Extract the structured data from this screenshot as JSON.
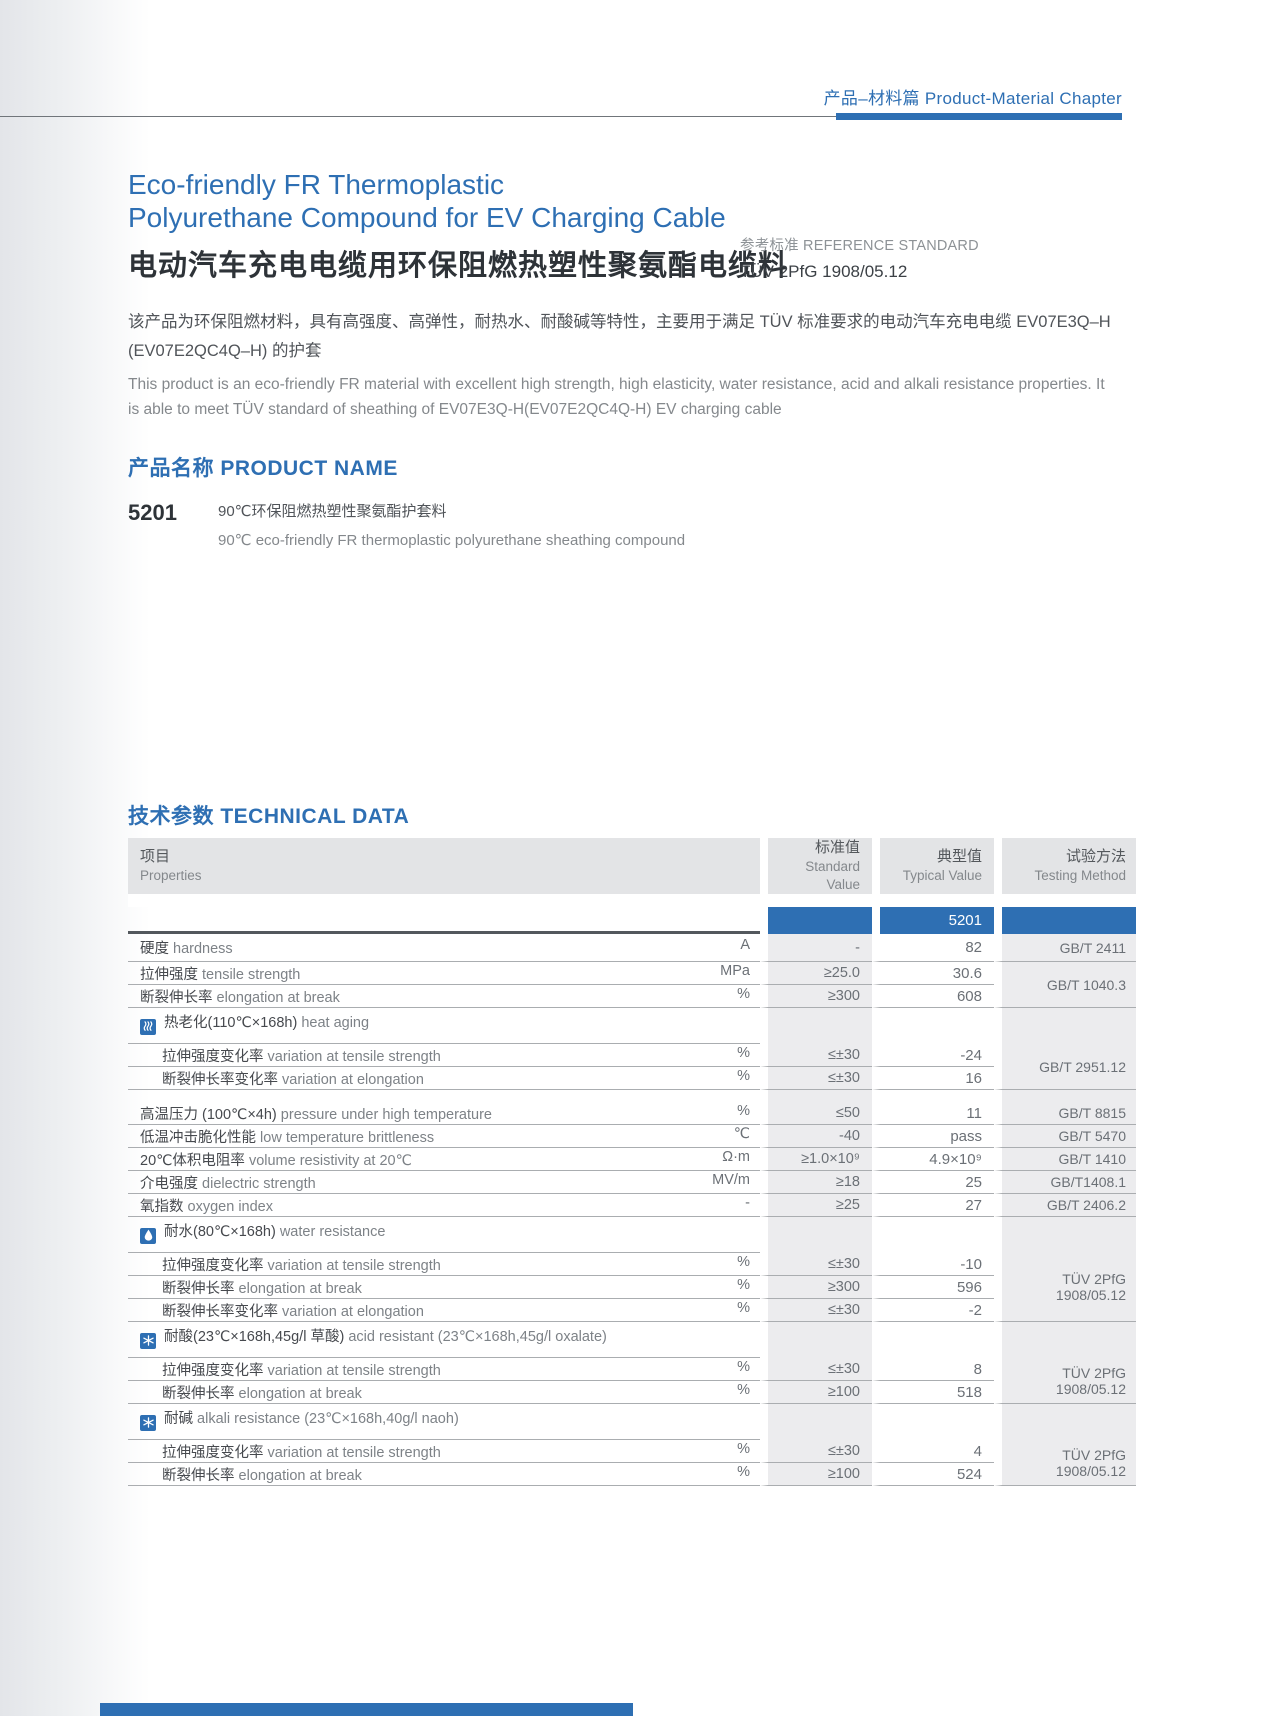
{
  "colors": {
    "accent_blue": "#2e6fb3",
    "table_shade": "#ececee",
    "table_header_shade": "#e3e4e6"
  },
  "chapter": {
    "header": "产品–材料篇 Product-Material Chapter"
  },
  "title": {
    "en_line1": "Eco-friendly FR Thermoplastic",
    "en_line2": "Polyurethane Compound for EV Charging Cable",
    "zh": "电动汽车充电电缆用环保阻燃热塑性聚氨酯电缆料"
  },
  "reference_standard": {
    "label": "参考标准 REFERENCE STANDARD",
    "value": "TÜV 2PfG 1908/05.12"
  },
  "description": {
    "zh": "该产品为环保阻燃材料，具有高强度、高弹性，耐热水、耐酸碱等特性，主要用于满足 TÜV 标准要求的电动汽车充电电缆 EV07E3Q–H (EV07E2QC4Q–H) 的护套",
    "en": "This product is an eco-friendly FR material with excellent high strength, high elasticity, water resistance, acid and alkali resistance properties. It is able to meet TÜV standard of sheathing of EV07E3Q-H(EV07E2QC4Q-H) EV charging cable"
  },
  "product_name_section": {
    "heading": "产品名称 PRODUCT NAME",
    "code": "5201",
    "desc_zh": "90℃环保阻燃热塑性聚氨酯护套料",
    "desc_en": "90℃ eco-friendly FR thermoplastic polyurethane sheathing compound"
  },
  "technical_data": {
    "heading": "技术参数 TECHNICAL DATA",
    "grade": "5201",
    "columns": {
      "properties_zh": "项目",
      "properties_en": "Properties",
      "standard_zh": "标准值",
      "standard_en": "Standard Value",
      "typical_zh": "典型值",
      "typical_en": "Typical Value",
      "testing_zh": "试验方法",
      "testing_en": "Testing Method"
    },
    "rows": [
      {
        "type": "data",
        "zh": "硬度",
        "en": "hardness",
        "unit": "A",
        "std": "-",
        "typ": "82",
        "test": "GB/T 2411",
        "test_span": 1
      },
      {
        "type": "data",
        "zh": "拉伸强度",
        "en": "tensile strength",
        "unit": "MPa",
        "std": "≥25.0",
        "typ": "30.6",
        "test": "GB/T 1040.3",
        "test_span": 2
      },
      {
        "type": "data",
        "zh": "断裂伸长率",
        "en": "elongation at break",
        "unit": "%",
        "std": "≥300",
        "typ": "608"
      },
      {
        "type": "section",
        "icon": "heat-icon",
        "zh": "热老化(110℃×168h)",
        "en": "heat aging"
      },
      {
        "type": "data",
        "indent": true,
        "zh": "拉伸强度变化率",
        "en": "variation at tensile strength",
        "unit": "%",
        "std": "≤±30",
        "typ": "-24",
        "test": "GB/T 2951.12",
        "test_span": 2
      },
      {
        "type": "data",
        "indent": true,
        "zh": "断裂伸长率变化率",
        "en": "variation at elongation",
        "unit": "%",
        "std": "≤±30",
        "typ": "16"
      },
      {
        "type": "gap"
      },
      {
        "type": "data",
        "zh": "高温压力 (100℃×4h)",
        "en": "pressure under high temperature",
        "unit": "%",
        "std": "≤50",
        "typ": "11",
        "test": "GB/T 8815",
        "test_span": 1
      },
      {
        "type": "data",
        "zh": "低温冲击脆化性能",
        "en": "low temperature brittleness",
        "unit": "℃",
        "std": "-40",
        "typ": "pass",
        "test": "GB/T 5470",
        "test_span": 1
      },
      {
        "type": "data",
        "zh": "20℃体积电阻率",
        "en": "volume resistivity at 20℃",
        "unit": "Ω·m",
        "std": "≥1.0×10⁹",
        "typ": "4.9×10⁹",
        "test": "GB/T 1410",
        "test_span": 1
      },
      {
        "type": "data",
        "zh": "介电强度",
        "en": "dielectric strength",
        "unit": "MV/m",
        "std": "≥18",
        "typ": "25",
        "test": "GB/T1408.1",
        "test_span": 1
      },
      {
        "type": "data",
        "zh": "氧指数",
        "en": "oxygen index",
        "unit": "-",
        "std": "≥25",
        "typ": "27",
        "test": "GB/T 2406.2",
        "test_span": 1
      },
      {
        "type": "section",
        "icon": "water-drop-icon",
        "zh": "耐水(80℃×168h)",
        "en": "water resistance"
      },
      {
        "type": "data",
        "indent": true,
        "zh": "拉伸强度变化率",
        "en": "variation at tensile strength",
        "unit": "%",
        "std": "≤±30",
        "typ": "-10",
        "test": "TÜV 2PfG 1908/05.12",
        "test_span": 3
      },
      {
        "type": "data",
        "indent": true,
        "zh": "断裂伸长率",
        "en": "elongation at break",
        "unit": "%",
        "std": "≥300",
        "typ": "596"
      },
      {
        "type": "data",
        "indent": true,
        "zh": "断裂伸长率变化率",
        "en": "variation at elongation",
        "unit": "%",
        "std": "≤±30",
        "typ": "-2"
      },
      {
        "type": "section",
        "icon": "snowflake-icon",
        "zh": "耐酸(23℃×168h,45g/l 草酸)",
        "en": "acid resistant (23℃×168h,45g/l oxalate)"
      },
      {
        "type": "data",
        "indent": true,
        "zh": "拉伸强度变化率",
        "en": "variation at tensile strength",
        "unit": "%",
        "std": "≤±30",
        "typ": "8",
        "test": "TÜV 2PfG 1908/05.12",
        "test_span": 2
      },
      {
        "type": "data",
        "indent": true,
        "zh": "断裂伸长率",
        "en": "elongation at break",
        "unit": "%",
        "std": "≥100",
        "typ": "518"
      },
      {
        "type": "section",
        "icon": "snowflake-icon",
        "zh": "耐碱",
        "en": "alkali resistance (23℃×168h,40g/l naoh)"
      },
      {
        "type": "data",
        "indent": true,
        "zh": "拉伸强度变化率",
        "en": "variation at tensile strength",
        "unit": "%",
        "std": "≤±30",
        "typ": "4",
        "test": "TÜV 2PfG 1908/05.12",
        "test_span": 2
      },
      {
        "type": "data",
        "indent": true,
        "zh": "断裂伸长率",
        "en": "elongation at break",
        "unit": "%",
        "std": "≥100",
        "typ": "524"
      }
    ]
  }
}
